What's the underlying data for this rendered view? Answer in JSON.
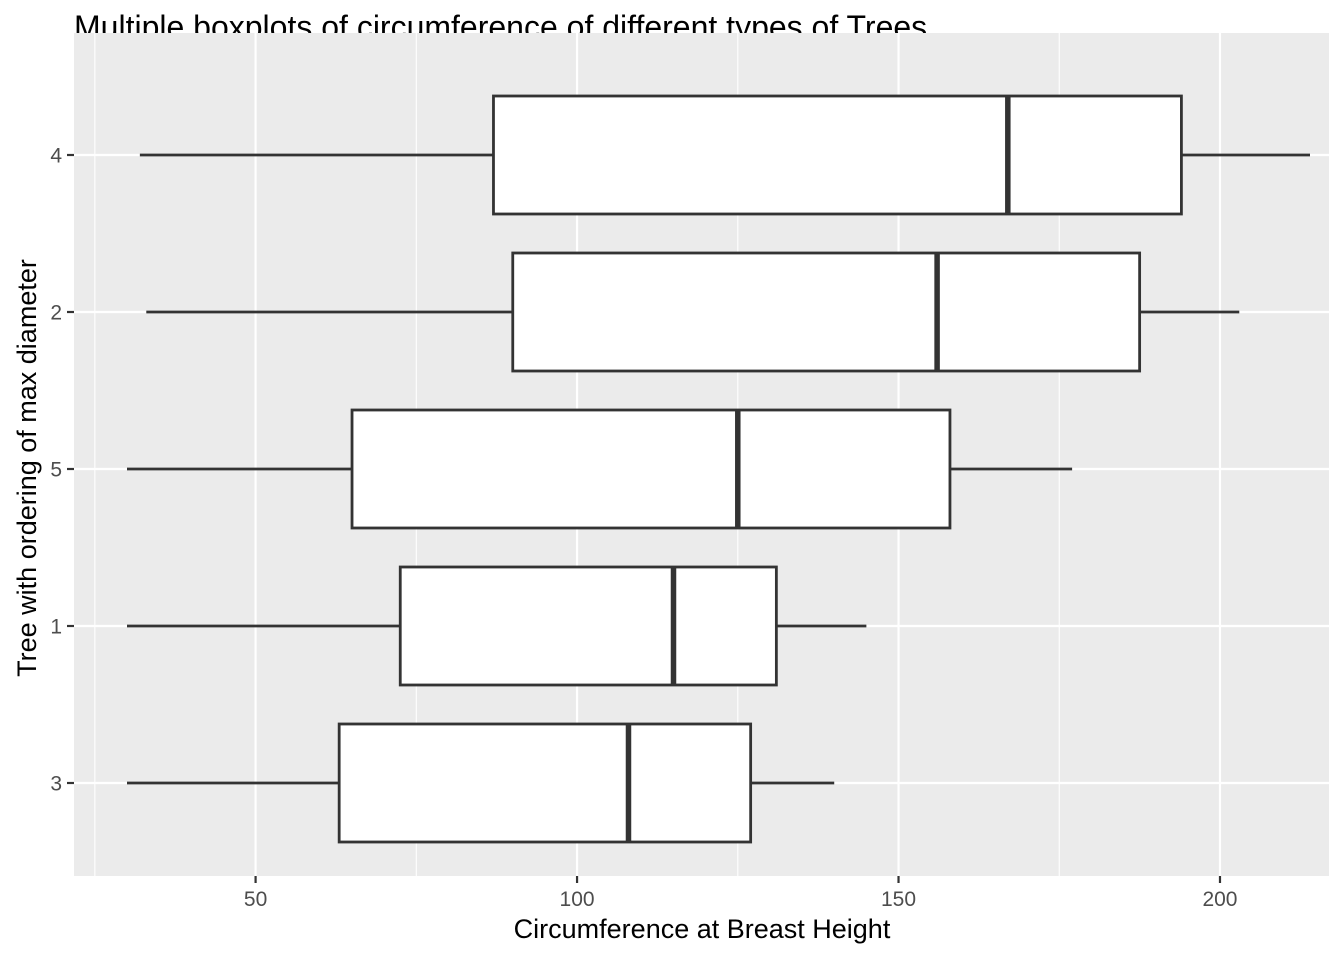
{
  "chart_data": {
    "type": "boxplot",
    "title": "Multiple boxplots of circumference of different types of Trees",
    "xlabel": "Circumference at Breast Height",
    "ylabel": "Tree with ordering of max diameter",
    "xlim": [
      25.8,
      214
    ],
    "x_ticks": [
      50,
      100,
      150,
      200
    ],
    "x_tick_labels": [
      "50",
      "100",
      "150",
      "200"
    ],
    "categories": [
      "4",
      "2",
      "5",
      "1",
      "3"
    ],
    "boxes": [
      {
        "category": "4",
        "whisker_low": 32,
        "q1": 87,
        "median": 167,
        "q3": 194,
        "whisker_high": 214
      },
      {
        "category": "2",
        "whisker_low": 33,
        "q1": 90,
        "median": 156,
        "q3": 187.5,
        "whisker_high": 203
      },
      {
        "category": "5",
        "whisker_low": 30,
        "q1": 65,
        "median": 125,
        "q3": 158,
        "whisker_high": 177
      },
      {
        "category": "1",
        "whisker_low": 30,
        "q1": 72.5,
        "median": 115,
        "q3": 131,
        "whisker_high": 145
      },
      {
        "category": "3",
        "whisker_low": 30,
        "q1": 63,
        "median": 108,
        "q3": 127,
        "whisker_high": 140
      }
    ],
    "grid": true,
    "legend": "none",
    "colors": {
      "panel_background": "#ebebeb",
      "grid_line": "#ffffff",
      "box_fill": "#ffffff",
      "box_stroke": "#333333",
      "tick_text": "#4d4d4d"
    }
  }
}
